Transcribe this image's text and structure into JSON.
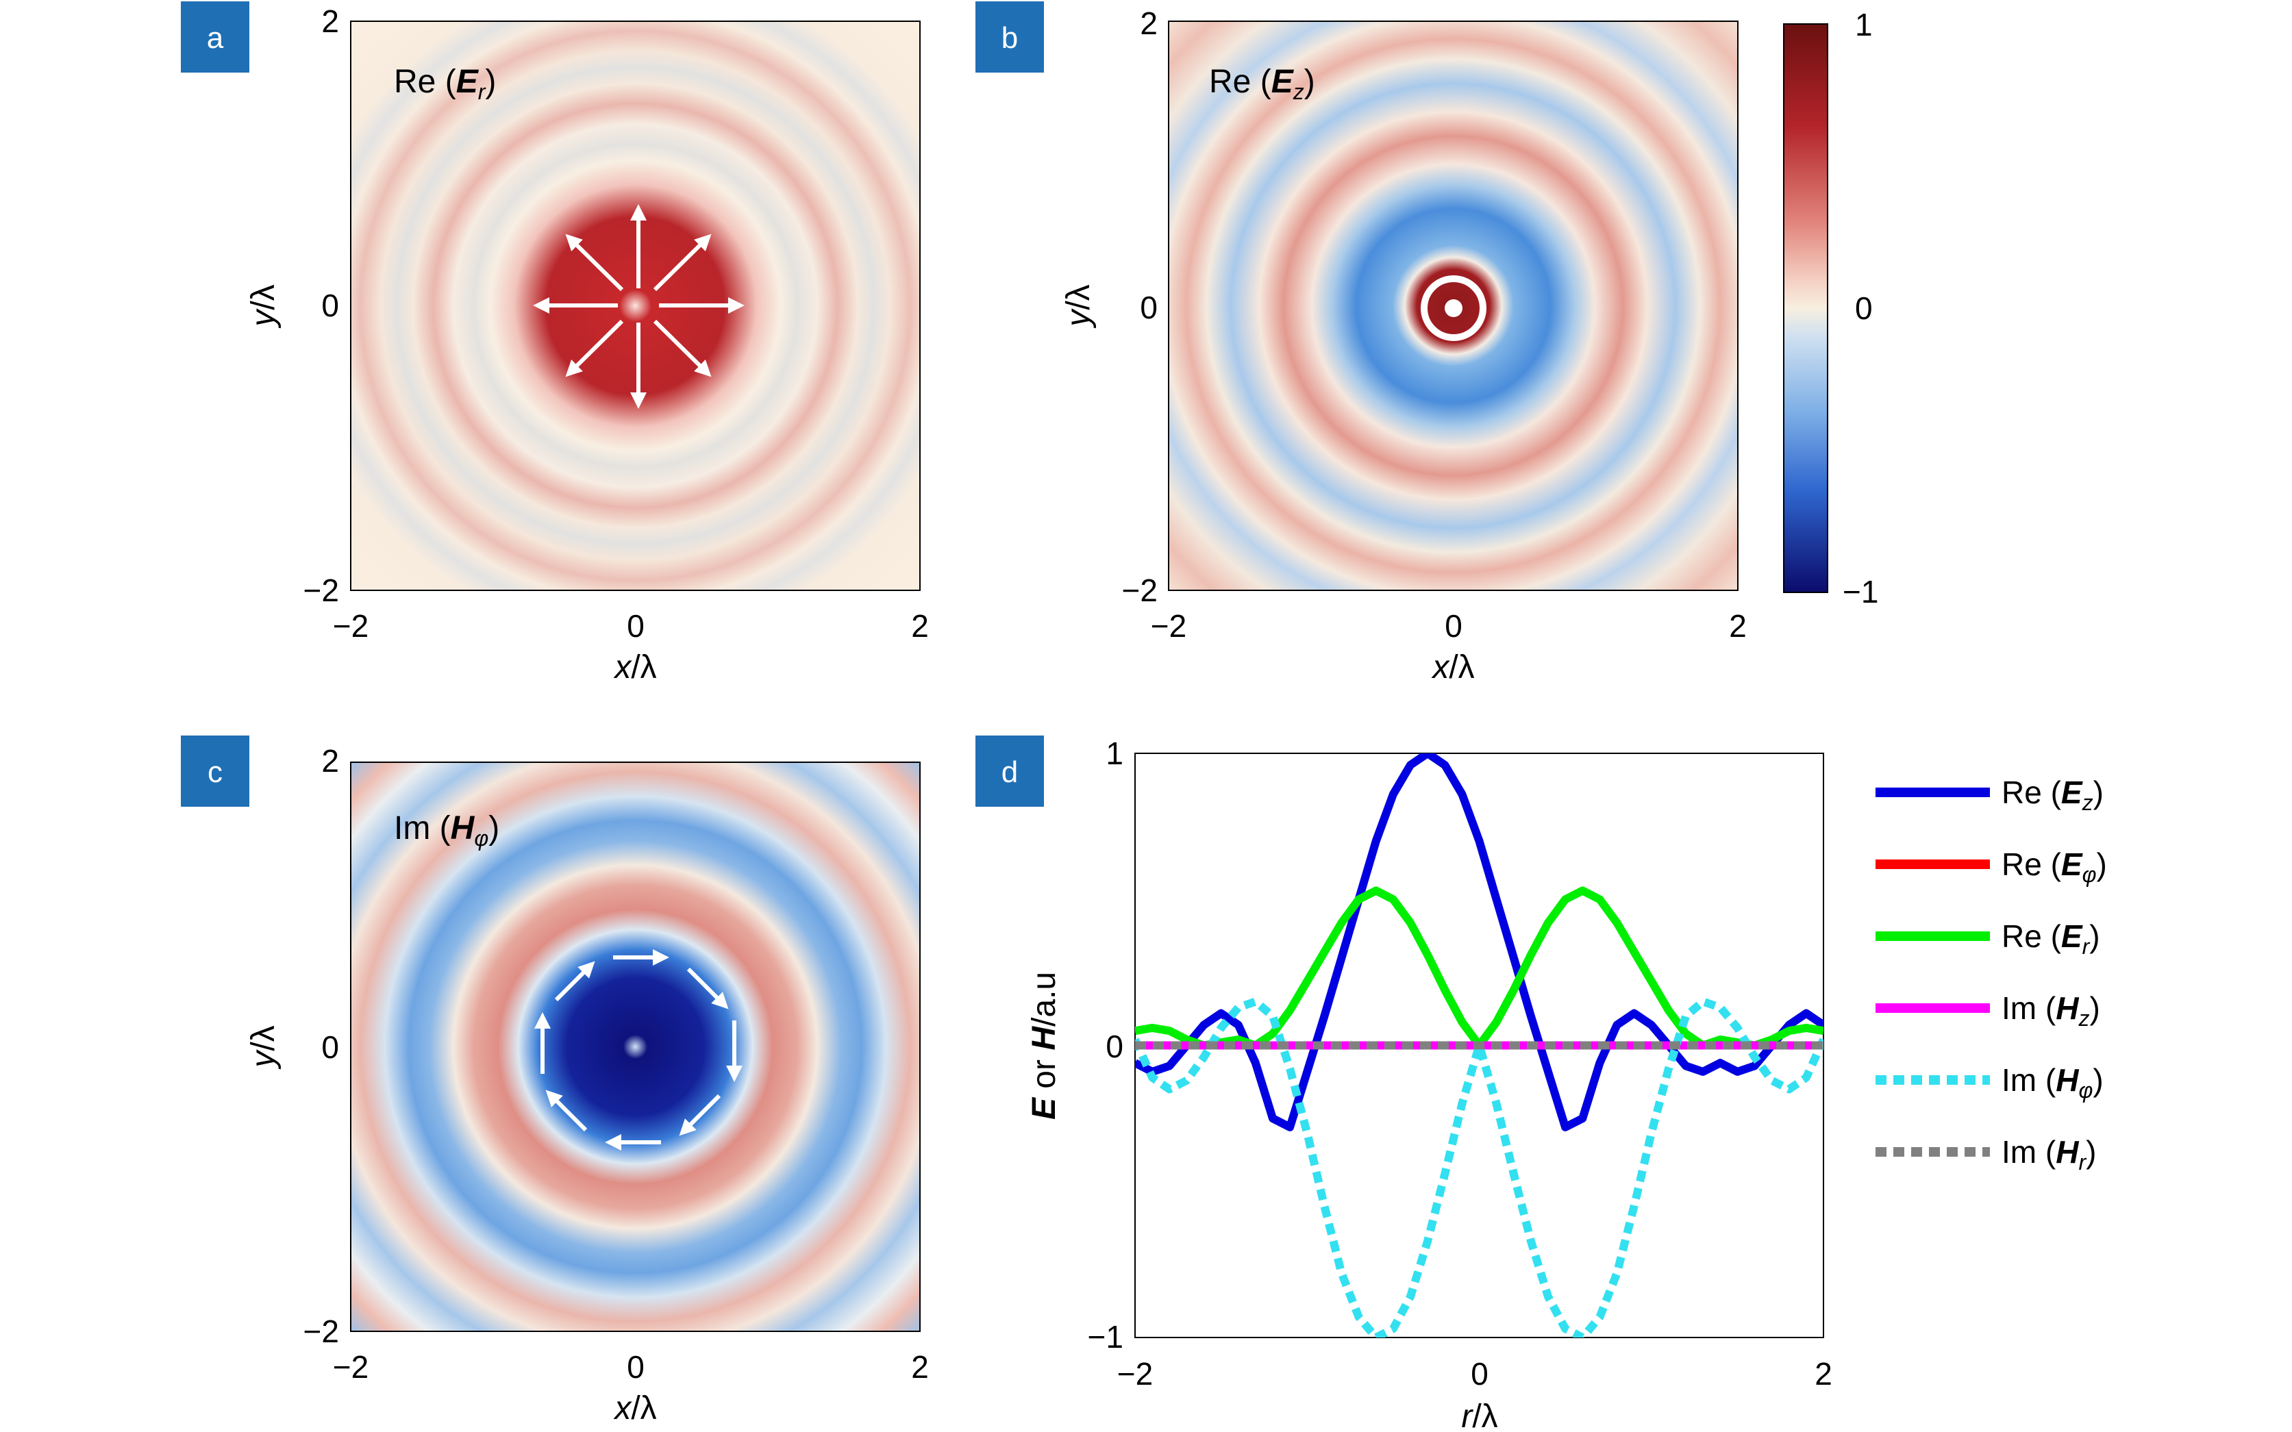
{
  "colors": {
    "panel_label_bg": "#1f6fb5",
    "cmap_top": "#6b1010",
    "cmap_mid": "#f7efe0",
    "cmap_bottom": "#0b0b6b"
  },
  "chart_data": [
    {
      "panel": "a",
      "type": "heatmap",
      "annotation": {
        "pre": "Re (",
        "sym": "E",
        "sub": "r",
        "post": ")"
      },
      "xlabel": {
        "v": "x",
        "r": "/λ"
      },
      "ylabel": {
        "v": "y",
        "r": "/λ"
      },
      "xlim": [
        -2,
        2
      ],
      "ylim": [
        -2,
        2
      ],
      "xticks": [
        "−2",
        "0",
        "2"
      ],
      "yticks": [
        "2",
        "0",
        "−2"
      ],
      "field": "radial component, positive core, ring period ≈ 0.5λ",
      "vector_arrows": "radial outward"
    },
    {
      "panel": "b",
      "type": "heatmap",
      "annotation": {
        "pre": "Re (",
        "sym": "E",
        "sub": "z",
        "post": ")"
      },
      "xlabel": {
        "v": "x",
        "r": "/λ"
      },
      "ylabel": {
        "v": "y",
        "r": "/λ"
      },
      "xlim": [
        -2,
        2
      ],
      "ylim": [
        -2,
        2
      ],
      "xticks": [
        "−2",
        "0",
        "2"
      ],
      "yticks": [
        "2",
        "0",
        "−2"
      ],
      "colorbar": {
        "range": [
          -1,
          1
        ],
        "ticks": [
          "1",
          "0",
          "−1"
        ]
      },
      "marker": "white ring and dot at center"
    },
    {
      "panel": "c",
      "type": "heatmap",
      "annotation": {
        "pre": "Im (",
        "sym": "H",
        "sub": "φ",
        "post": ")"
      },
      "xlabel": {
        "v": "x",
        "r": "/λ"
      },
      "ylabel": {
        "v": "y",
        "r": "/λ"
      },
      "xlim": [
        -2,
        2
      ],
      "ylim": [
        -2,
        2
      ],
      "xticks": [
        "−2",
        "0",
        "2"
      ],
      "yticks": [
        "2",
        "0",
        "−2"
      ],
      "vector_arrows": "azimuthal clockwise"
    },
    {
      "panel": "d",
      "type": "line",
      "xlabel": {
        "v": "r",
        "r": "/λ"
      },
      "ylabel": {
        "a": "E",
        "mid": " or ",
        "b": "H",
        "r": "/a.u"
      },
      "xlim": [
        -2,
        2
      ],
      "ylim": [
        -1,
        1
      ],
      "xticks": [
        "−2",
        "0",
        "2"
      ],
      "yticks": [
        "1",
        "0",
        "−1"
      ],
      "legend_position": "right",
      "x": [
        -2.0,
        -1.9,
        -1.8,
        -1.7,
        -1.6,
        -1.5,
        -1.4,
        -1.3,
        -1.2,
        -1.1,
        -1.0,
        -0.9,
        -0.8,
        -0.7,
        -0.6,
        -0.5,
        -0.4,
        -0.3,
        -0.2,
        -0.1,
        0.0,
        0.1,
        0.2,
        0.3,
        0.4,
        0.5,
        0.6,
        0.7,
        0.8,
        0.9,
        1.0,
        1.1,
        1.2,
        1.3,
        1.4,
        1.5,
        1.6,
        1.7,
        1.8,
        1.9,
        2.0
      ],
      "series": [
        {
          "name": {
            "pre": "Re (",
            "sym": "E",
            "sub": "z",
            "post": ")"
          },
          "color": "#0000e0",
          "dash": false,
          "values": [
            -0.06,
            -0.09,
            -0.07,
            0.0,
            0.07,
            0.11,
            0.07,
            -0.06,
            -0.25,
            -0.28,
            -0.09,
            0.1,
            0.3,
            0.5,
            0.7,
            0.86,
            0.96,
            1.0,
            0.96,
            0.86,
            0.7,
            0.5,
            0.3,
            0.1,
            -0.09,
            -0.28,
            -0.25,
            -0.06,
            0.07,
            0.11,
            0.07,
            0.0,
            -0.07,
            -0.09,
            -0.06,
            -0.09,
            -0.07,
            0.0,
            0.07,
            0.11,
            0.07
          ]
        },
        {
          "name": {
            "pre": "Re (",
            "sym": "E",
            "sub": "φ",
            "post": ")"
          },
          "color": "#ff0000",
          "dash": false,
          "values": [
            0,
            0,
            0,
            0,
            0,
            0,
            0,
            0,
            0,
            0,
            0,
            0,
            0,
            0,
            0,
            0,
            0,
            0,
            0,
            0,
            0,
            0,
            0,
            0,
            0,
            0,
            0,
            0,
            0,
            0,
            0,
            0,
            0,
            0,
            0,
            0,
            0,
            0,
            0,
            0,
            0
          ]
        },
        {
          "name": {
            "pre": "Re (",
            "sym": "E",
            "sub": "r",
            "post": ")"
          },
          "color": "#00ee00",
          "dash": false,
          "values": [
            0.05,
            0.06,
            0.05,
            0.02,
            0.0,
            0.01,
            0.02,
            0.0,
            0.04,
            0.12,
            0.22,
            0.32,
            0.42,
            0.5,
            0.53,
            0.5,
            0.42,
            0.31,
            0.19,
            0.08,
            0.0,
            0.08,
            0.19,
            0.31,
            0.42,
            0.5,
            0.53,
            0.5,
            0.42,
            0.32,
            0.22,
            0.12,
            0.04,
            0.0,
            0.02,
            0.01,
            0.0,
            0.02,
            0.05,
            0.06,
            0.05
          ]
        },
        {
          "name": {
            "pre": "Im (",
            "sym": "H",
            "sub": "z",
            "post": ")"
          },
          "color": "#ff00ff",
          "dash": false,
          "values": [
            0,
            0,
            0,
            0,
            0,
            0,
            0,
            0,
            0,
            0,
            0,
            0,
            0,
            0,
            0,
            0,
            0,
            0,
            0,
            0,
            0,
            0,
            0,
            0,
            0,
            0,
            0,
            0,
            0,
            0,
            0,
            0,
            0,
            0,
            0,
            0,
            0,
            0,
            0,
            0,
            0
          ]
        },
        {
          "name": {
            "pre": "Im (",
            "sym": "H",
            "sub": "φ",
            "post": ")"
          },
          "color": "#33e0f0",
          "dash": true,
          "values": [
            0.02,
            -0.11,
            -0.15,
            -0.12,
            -0.04,
            0.06,
            0.13,
            0.15,
            0.1,
            -0.08,
            -0.3,
            -0.55,
            -0.78,
            -0.93,
            -1.0,
            -0.97,
            -0.86,
            -0.67,
            -0.44,
            -0.2,
            0.0,
            -0.2,
            -0.44,
            -0.67,
            -0.86,
            -0.97,
            -1.0,
            -0.93,
            -0.78,
            -0.55,
            -0.3,
            -0.08,
            0.1,
            0.15,
            0.13,
            0.06,
            -0.04,
            -0.12,
            -0.15,
            -0.11,
            0.02
          ]
        },
        {
          "name": {
            "pre": "Im (",
            "sym": "H",
            "sub": "r",
            "post": ")"
          },
          "color": "#808080",
          "dash": true,
          "values": [
            0,
            0,
            0,
            0,
            0,
            0,
            0,
            0,
            0,
            0,
            0,
            0,
            0,
            0,
            0,
            0,
            0,
            0,
            0,
            0,
            0,
            0,
            0,
            0,
            0,
            0,
            0,
            0,
            0,
            0,
            0,
            0,
            0,
            0,
            0,
            0,
            0,
            0,
            0,
            0,
            0
          ]
        }
      ]
    }
  ]
}
